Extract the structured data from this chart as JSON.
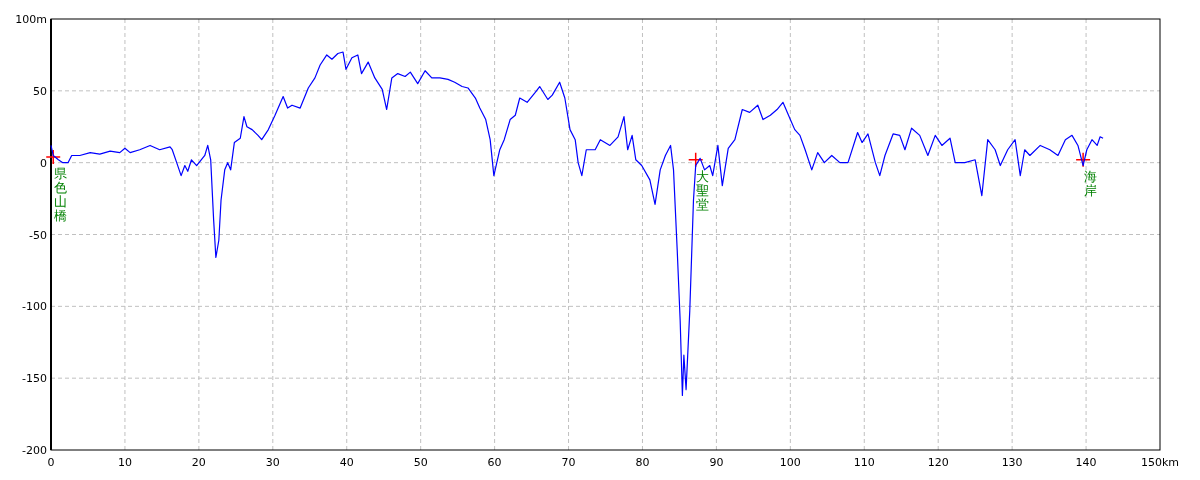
{
  "chart_data": {
    "type": "line",
    "x": [
      0,
      0.3,
      1,
      1.6,
      2.3,
      2.8,
      3.9,
      5.3,
      6.6,
      8,
      9.3,
      10,
      10.7,
      12,
      13.4,
      14.7,
      16.1,
      16.4,
      17,
      17.6,
      18.1,
      18.5,
      19,
      19.7,
      20.8,
      21.2,
      21.6,
      22,
      22.3,
      22.7,
      23,
      23.5,
      23.9,
      24.3,
      24.8,
      25.6,
      26.1,
      26.5,
      27.2,
      28,
      28.5,
      29.4,
      30.3,
      31.4,
      32,
      32.6,
      33.7,
      34.8,
      35.7,
      36.4,
      37.3,
      38,
      38.8,
      39.5,
      39.9,
      40.7,
      41.5,
      42,
      42.9,
      43.8,
      44.8,
      45.4,
      46.1,
      46.9,
      47.9,
      48.6,
      49.6,
      50.6,
      51.5,
      52.6,
      53.7,
      54.6,
      55.6,
      56.4,
      57.4,
      58,
      58.8,
      59.4,
      59.9,
      60.7,
      61.3,
      62.1,
      62.8,
      63.4,
      64.4,
      65.5,
      66.1,
      67.2,
      67.8,
      68.8,
      69.5,
      70.2,
      70.9,
      71.3,
      71.8,
      72.4,
      73.6,
      74.3,
      75.6,
      76.7,
      77.5,
      78,
      78.6,
      79.1,
      79.9,
      81,
      81.7,
      82.4,
      83.1,
      83.8,
      84.2,
      84.7,
      85.1,
      85.4,
      85.6,
      85.9,
      86.4,
      86.9,
      87.2,
      87.8,
      88.4,
      89.1,
      89.5,
      90.2,
      90.8,
      91.6,
      92.5,
      93.5,
      94.5,
      95.6,
      96.3,
      97.3,
      98.2,
      99,
      100,
      100.6,
      101.3,
      102,
      102.9,
      103.7,
      104.6,
      105.6,
      106.7,
      107.8,
      109.1,
      109.7,
      110.5,
      111.5,
      112.1,
      112.8,
      113.9,
      114.8,
      115.5,
      116.4,
      117.5,
      118.6,
      119.6,
      120.5,
      121.6,
      122.3,
      123.6,
      125,
      125.9,
      126.7,
      127.7,
      128.4,
      129.4,
      130.4,
      131.1,
      131.7,
      132.4,
      133.8,
      135.1,
      136.2,
      137.2,
      138.1,
      138.9,
      139.6,
      140.1,
      140.8,
      141.5,
      141.9,
      142.3
    ],
    "series": [
      {
        "type": "scatter",
        "marker": "cross",
        "color": "#ff0000",
        "x": [
          0.3,
          87.2,
          139.6
        ],
        "values": [
          4,
          2,
          2
        ]
      },
      {
        "color": "#0000ff",
        "values": [
          12,
          5,
          2,
          0,
          0,
          5,
          5,
          7,
          6,
          8,
          7,
          10,
          7,
          9,
          12,
          9,
          11,
          9,
          0,
          -9,
          -2,
          -6,
          2,
          -2,
          5,
          12,
          2,
          -40,
          -66,
          -54,
          -26,
          -5,
          0,
          -5,
          14,
          17,
          32,
          25,
          23,
          19,
          16,
          23,
          33,
          46,
          38,
          40,
          38,
          52,
          59,
          68,
          75,
          72,
          76,
          77,
          65,
          73,
          75,
          62,
          70,
          59,
          51,
          37,
          59,
          62,
          60,
          63,
          55,
          64,
          59,
          59,
          58,
          56,
          53,
          52,
          45,
          38,
          30,
          16,
          -9,
          9,
          16,
          30,
          33,
          45,
          42,
          49,
          53,
          44,
          47,
          56,
          45,
          23,
          16,
          0,
          -9,
          9,
          9,
          16,
          12,
          18,
          32,
          9,
          19,
          2,
          -2,
          -12,
          -29,
          -5,
          5,
          12,
          -5,
          -61,
          -110,
          -162,
          -134,
          -158,
          -103,
          -26,
          -2,
          3,
          -5,
          -2,
          -9,
          12,
          -16,
          10,
          16,
          37,
          35,
          40,
          30,
          33,
          37,
          42,
          30,
          23,
          19,
          9,
          -5,
          7,
          0,
          5,
          0,
          0,
          21,
          14,
          20,
          0,
          -9,
          5,
          20,
          19,
          9,
          24,
          19,
          5,
          19,
          12,
          17,
          0,
          0,
          2,
          -23,
          16,
          9,
          -2,
          9,
          16,
          -9,
          9,
          5,
          12,
          9,
          5,
          16,
          19,
          12,
          -2,
          9,
          16,
          12,
          18,
          17
        ]
      }
    ],
    "xlim": [
      0,
      150
    ],
    "ylim": [
      -200,
      100
    ],
    "xticks": [
      0,
      10,
      20,
      30,
      40,
      50,
      60,
      70,
      80,
      90,
      100,
      110,
      120,
      130,
      140,
      {
        "value": 150,
        "label": "150km"
      }
    ],
    "yticks": [
      -200,
      -150,
      -100,
      -50,
      0,
      50,
      {
        "value": 100,
        "label": "100m"
      }
    ],
    "grid": true,
    "annotations": [
      {
        "text": "県色山橋",
        "x": 0.3,
        "y": 4
      },
      {
        "text": "大聖堂",
        "x": 87.2,
        "y": 2
      },
      {
        "text": "海岸",
        "x": 139.6,
        "y": 2
      }
    ]
  }
}
